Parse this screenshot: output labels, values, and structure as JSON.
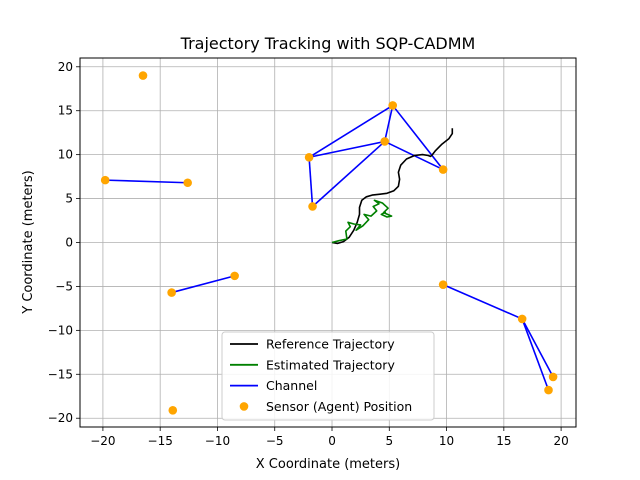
{
  "chart_data": {
    "type": "line",
    "title": "Trajectory Tracking with SQP-CADMM",
    "xlabel": "X Coordinate (meters)",
    "ylabel": "Y Coordinate (meters)",
    "xlim": [
      -22,
      21.3
    ],
    "ylim": [
      -21,
      21
    ],
    "xticks": [
      -20,
      -15,
      -10,
      -5,
      0,
      5,
      10,
      15,
      20
    ],
    "yticks": [
      -20,
      -15,
      -10,
      -5,
      0,
      5,
      10,
      15,
      20
    ],
    "grid": true,
    "legend_position": "lower-center",
    "colors": {
      "reference": "#000000",
      "estimated": "#008000",
      "channel": "#0000ff",
      "sensor": "#ffa500",
      "grid": "#b0b0b0"
    },
    "legend": [
      {
        "label": "Reference Trajectory",
        "kind": "line",
        "color": "#000000"
      },
      {
        "label": "Estimated Trajectory",
        "kind": "line",
        "color": "#008000"
      },
      {
        "label": "Channel",
        "kind": "line",
        "color": "#0000ff"
      },
      {
        "label": "Sensor (Agent) Position",
        "kind": "marker",
        "color": "#ffa500"
      }
    ],
    "series": [
      {
        "name": "Reference Trajectory",
        "x": [
          0.0,
          0.5,
          1.0,
          1.5,
          1.9,
          2.2,
          2.4,
          2.4,
          2.6,
          3.0,
          3.5,
          4.2,
          4.8,
          5.4,
          5.8,
          5.9,
          5.8,
          6.0,
          6.5,
          7.2,
          7.9,
          8.4,
          8.6,
          8.7,
          9.0,
          9.6,
          10.2,
          10.5,
          10.5
        ],
        "y": [
          0.0,
          -0.1,
          0.1,
          0.6,
          1.4,
          2.3,
          3.2,
          4.0,
          4.8,
          5.2,
          5.4,
          5.5,
          5.6,
          5.9,
          6.4,
          7.2,
          8.0,
          8.8,
          9.5,
          9.9,
          10.0,
          9.9,
          9.8,
          9.9,
          10.4,
          11.2,
          11.8,
          12.4,
          13.0
        ]
      },
      {
        "name": "Estimated Trajectory",
        "x": [
          0.0,
          0.6,
          1.3,
          1.2,
          1.6,
          1.4,
          1.9,
          2.5,
          2.1,
          2.7,
          3.2,
          2.8,
          3.4,
          3.9,
          3.6,
          4.1,
          3.7,
          4.4,
          4.9,
          4.5,
          5.2,
          4.8,
          4.3,
          4.7
        ],
        "y": [
          0.0,
          0.2,
          0.4,
          1.3,
          1.8,
          2.3,
          2.1,
          2.0,
          1.4,
          1.9,
          2.6,
          3.2,
          3.0,
          3.6,
          4.1,
          4.4,
          4.8,
          4.5,
          3.9,
          3.4,
          3.0,
          2.9,
          3.2,
          3.5
        ]
      }
    ],
    "sensors": [
      {
        "x": -16.5,
        "y": 19.0
      },
      {
        "x": -19.8,
        "y": 7.1
      },
      {
        "x": -12.6,
        "y": 6.8
      },
      {
        "x": -14.0,
        "y": -5.7
      },
      {
        "x": -8.5,
        "y": -3.8
      },
      {
        "x": -13.9,
        "y": -19.1
      },
      {
        "x": -2.0,
        "y": 9.7
      },
      {
        "x": -1.7,
        "y": 4.1
      },
      {
        "x": 4.6,
        "y": 11.5
      },
      {
        "x": 5.3,
        "y": 15.6
      },
      {
        "x": 9.7,
        "y": 8.3
      },
      {
        "x": 9.7,
        "y": -4.8
      },
      {
        "x": 16.6,
        "y": -8.7
      },
      {
        "x": 19.3,
        "y": -15.3
      },
      {
        "x": 18.9,
        "y": -16.8
      }
    ],
    "channels": [
      [
        -19.8,
        7.1,
        -12.6,
        6.8
      ],
      [
        -14.0,
        -5.7,
        -8.5,
        -3.8
      ],
      [
        -2.0,
        9.7,
        5.3,
        15.6
      ],
      [
        -2.0,
        9.7,
        4.6,
        11.5
      ],
      [
        -2.0,
        9.7,
        -1.7,
        4.1
      ],
      [
        -1.7,
        4.1,
        4.6,
        11.5
      ],
      [
        4.6,
        11.5,
        5.3,
        15.6
      ],
      [
        4.6,
        11.5,
        9.7,
        8.3
      ],
      [
        5.3,
        15.6,
        9.7,
        8.3
      ],
      [
        9.7,
        -4.8,
        16.6,
        -8.7
      ],
      [
        16.6,
        -8.7,
        19.3,
        -15.3
      ],
      [
        16.6,
        -8.7,
        18.9,
        -16.8
      ]
    ]
  }
}
